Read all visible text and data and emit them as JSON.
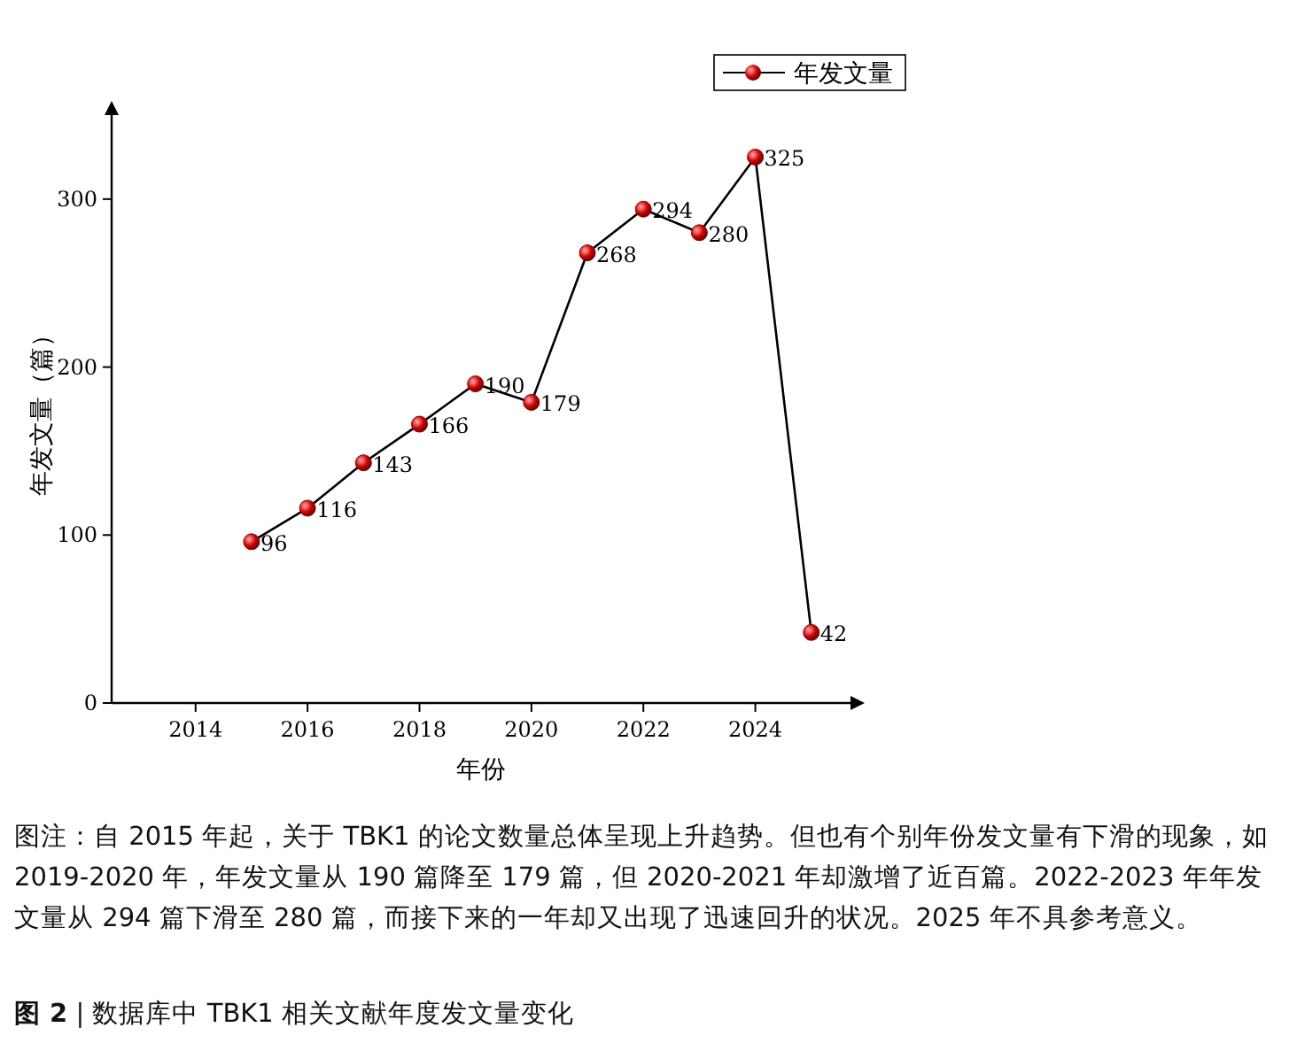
{
  "chart_data": {
    "type": "line",
    "xlabel": "年份",
    "ylabel": "年发文量（篇）",
    "x": [
      2015,
      2016,
      2017,
      2018,
      2019,
      2020,
      2021,
      2022,
      2023,
      2024,
      2025
    ],
    "series": [
      {
        "name": "年发文量",
        "color": "#000000",
        "colors": [
          "#d40000",
          "#d40000",
          "#d40000",
          "#d40000",
          "#d40000",
          "#d40000",
          "#d40000",
          "#d40000",
          "#d40000",
          "#d40000",
          "#d40000"
        ],
        "values": [
          96,
          116,
          143,
          166,
          190,
          179,
          268,
          294,
          280,
          325,
          42
        ]
      }
    ],
    "xlim": [
      2012.5,
      2025.7
    ],
    "ylim": [
      0,
      350
    ],
    "xticks": [
      2014,
      2016,
      2018,
      2020,
      2022,
      2024
    ],
    "yticks": [
      0,
      100,
      200,
      300
    ],
    "marker": "circle",
    "line_style": "solid",
    "data_labels": true,
    "legend": "top right",
    "annotations": [
      "图注：自 2015 年起，关于 TBK1 的论文数量总体呈现上升趋势。但也有个别年份发文量有下滑的现象，如 2019-2020 年，年发文量从 190 篇降至 179 篇，但 2020-2021 年却激增了近百篇。2022-2023 年年发文量从 294 篇下滑至 280 篇，而接下来的一年却又出现了迅速回升的状况。2025 年不具参考意义。",
      "**图 2** | 数据库中 TBK1 相关文献年度发文量变化"
    ]
  }
}
